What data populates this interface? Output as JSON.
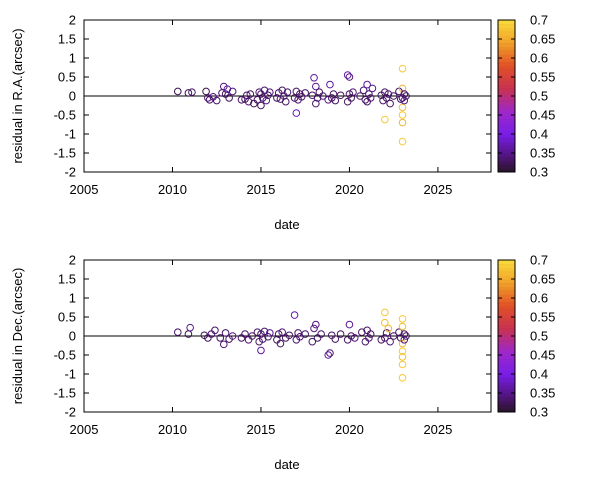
{
  "chart_data": [
    {
      "type": "scatter",
      "xlabel": "date",
      "ylabel": "residual in R.A.(arcsec)",
      "xlim": [
        2005,
        2028
      ],
      "ylim": [
        -2,
        2
      ],
      "xticks": [
        2005,
        2010,
        2015,
        2020,
        2025
      ],
      "yticks": [
        -2,
        -1.5,
        -1,
        -0.5,
        0,
        0.5,
        1,
        1.5,
        2
      ],
      "zero_line": true,
      "marker": "open-circle",
      "colorbar": {
        "palette": "purple-red-yellow",
        "range": [
          0.3,
          0.7
        ],
        "ticks": [
          "0.3",
          "0.35",
          "0.4",
          "0.45",
          "0.5",
          "0.55",
          "0.6",
          "0.65",
          "0.7"
        ],
        "placement": "right"
      },
      "points": [
        {
          "x": 2010.3,
          "y": 0.12,
          "c": 0.32
        },
        {
          "x": 2010.9,
          "y": 0.08,
          "c": 0.32
        },
        {
          "x": 2011.1,
          "y": 0.1,
          "c": 0.33
        },
        {
          "x": 2011.9,
          "y": 0.12,
          "c": 0.32
        },
        {
          "x": 2012.0,
          "y": -0.05,
          "c": 0.34
        },
        {
          "x": 2012.1,
          "y": -0.1,
          "c": 0.33
        },
        {
          "x": 2012.3,
          "y": -0.02,
          "c": 0.35
        },
        {
          "x": 2012.5,
          "y": -0.12,
          "c": 0.33
        },
        {
          "x": 2012.8,
          "y": 0.08,
          "c": 0.33
        },
        {
          "x": 2012.9,
          "y": 0.25,
          "c": 0.34
        },
        {
          "x": 2013.0,
          "y": 0.05,
          "c": 0.33
        },
        {
          "x": 2013.1,
          "y": 0.18,
          "c": 0.36
        },
        {
          "x": 2013.2,
          "y": -0.05,
          "c": 0.33
        },
        {
          "x": 2013.4,
          "y": 0.12,
          "c": 0.34
        },
        {
          "x": 2013.9,
          "y": -0.1,
          "c": 0.33
        },
        {
          "x": 2014.1,
          "y": -0.08,
          "c": 0.33
        },
        {
          "x": 2014.2,
          "y": 0.02,
          "c": 0.33
        },
        {
          "x": 2014.3,
          "y": -0.15,
          "c": 0.34
        },
        {
          "x": 2014.4,
          "y": 0.05,
          "c": 0.33
        },
        {
          "x": 2014.6,
          "y": -0.2,
          "c": 0.32
        },
        {
          "x": 2014.8,
          "y": -0.1,
          "c": 0.33
        },
        {
          "x": 2014.9,
          "y": 0.1,
          "c": 0.33
        },
        {
          "x": 2015.0,
          "y": -0.25,
          "c": 0.33
        },
        {
          "x": 2015.0,
          "y": 0.05,
          "c": 0.34
        },
        {
          "x": 2015.1,
          "y": -0.05,
          "c": 0.33
        },
        {
          "x": 2015.2,
          "y": 0.15,
          "c": 0.33
        },
        {
          "x": 2015.3,
          "y": -0.12,
          "c": 0.35
        },
        {
          "x": 2015.4,
          "y": 0.02,
          "c": 0.33
        },
        {
          "x": 2015.5,
          "y": 0.1,
          "c": 0.34
        },
        {
          "x": 2015.9,
          "y": -0.05,
          "c": 0.33
        },
        {
          "x": 2016.0,
          "y": 0.08,
          "c": 0.33
        },
        {
          "x": 2016.1,
          "y": -0.08,
          "c": 0.33
        },
        {
          "x": 2016.2,
          "y": 0.15,
          "c": 0.33
        },
        {
          "x": 2016.3,
          "y": 0.0,
          "c": 0.34
        },
        {
          "x": 2016.4,
          "y": -0.15,
          "c": 0.33
        },
        {
          "x": 2016.5,
          "y": 0.1,
          "c": 0.33
        },
        {
          "x": 2016.9,
          "y": -0.05,
          "c": 0.33
        },
        {
          "x": 2017.0,
          "y": -0.45,
          "c": 0.38
        },
        {
          "x": 2017.0,
          "y": 0.12,
          "c": 0.33
        },
        {
          "x": 2017.1,
          "y": -0.1,
          "c": 0.34
        },
        {
          "x": 2017.2,
          "y": 0.05,
          "c": 0.33
        },
        {
          "x": 2017.3,
          "y": -0.02,
          "c": 0.33
        },
        {
          "x": 2017.5,
          "y": 0.08,
          "c": 0.33
        },
        {
          "x": 2017.9,
          "y": 0.02,
          "c": 0.33
        },
        {
          "x": 2018.0,
          "y": 0.48,
          "c": 0.36
        },
        {
          "x": 2018.1,
          "y": 0.25,
          "c": 0.35
        },
        {
          "x": 2018.1,
          "y": -0.2,
          "c": 0.33
        },
        {
          "x": 2018.2,
          "y": -0.05,
          "c": 0.34
        },
        {
          "x": 2018.3,
          "y": 0.1,
          "c": 0.33
        },
        {
          "x": 2018.5,
          "y": 0.0,
          "c": 0.33
        },
        {
          "x": 2018.8,
          "y": -0.1,
          "c": 0.35
        },
        {
          "x": 2018.9,
          "y": 0.3,
          "c": 0.36
        },
        {
          "x": 2019.0,
          "y": -0.05,
          "c": 0.33
        },
        {
          "x": 2019.1,
          "y": 0.05,
          "c": 0.33
        },
        {
          "x": 2019.2,
          "y": -0.12,
          "c": 0.33
        },
        {
          "x": 2019.5,
          "y": 0.02,
          "c": 0.33
        },
        {
          "x": 2019.9,
          "y": 0.55,
          "c": 0.37
        },
        {
          "x": 2020.0,
          "y": 0.5,
          "c": 0.34
        },
        {
          "x": 2019.9,
          "y": -0.15,
          "c": 0.33
        },
        {
          "x": 2020.0,
          "y": 0.05,
          "c": 0.33
        },
        {
          "x": 2020.1,
          "y": -0.05,
          "c": 0.33
        },
        {
          "x": 2020.2,
          "y": 0.1,
          "c": 0.34
        },
        {
          "x": 2020.6,
          "y": 0.0,
          "c": 0.33
        },
        {
          "x": 2020.8,
          "y": 0.15,
          "c": 0.33
        },
        {
          "x": 2020.9,
          "y": -0.1,
          "c": 0.33
        },
        {
          "x": 2021.0,
          "y": 0.3,
          "c": 0.36
        },
        {
          "x": 2021.0,
          "y": -0.15,
          "c": 0.33
        },
        {
          "x": 2021.1,
          "y": 0.05,
          "c": 0.33
        },
        {
          "x": 2021.2,
          "y": -0.05,
          "c": 0.34
        },
        {
          "x": 2021.3,
          "y": 0.2,
          "c": 0.35
        },
        {
          "x": 2021.8,
          "y": 0.02,
          "c": 0.33
        },
        {
          "x": 2021.9,
          "y": -0.12,
          "c": 0.33
        },
        {
          "x": 2022.0,
          "y": 0.1,
          "c": 0.33
        },
        {
          "x": 2022.0,
          "y": -0.62,
          "c": 0.68
        },
        {
          "x": 2022.1,
          "y": -0.05,
          "c": 0.33
        },
        {
          "x": 2022.2,
          "y": 0.05,
          "c": 0.34
        },
        {
          "x": 2022.3,
          "y": -0.2,
          "c": 0.33
        },
        {
          "x": 2022.5,
          "y": 0.0,
          "c": 0.33
        },
        {
          "x": 2022.8,
          "y": 0.12,
          "c": 0.33
        },
        {
          "x": 2022.9,
          "y": -0.08,
          "c": 0.33
        },
        {
          "x": 2023.0,
          "y": 0.72,
          "c": 0.68
        },
        {
          "x": 2023.0,
          "y": 0.2,
          "c": 0.66
        },
        {
          "x": 2023.0,
          "y": -0.05,
          "c": 0.34
        },
        {
          "x": 2023.0,
          "y": -0.3,
          "c": 0.67
        },
        {
          "x": 2023.0,
          "y": -0.5,
          "c": 0.68
        },
        {
          "x": 2023.0,
          "y": -0.7,
          "c": 0.66
        },
        {
          "x": 2023.0,
          "y": -1.2,
          "c": 0.68
        },
        {
          "x": 2023.1,
          "y": 0.05,
          "c": 0.33
        },
        {
          "x": 2023.1,
          "y": -0.12,
          "c": 0.35
        },
        {
          "x": 2023.2,
          "y": 0.0,
          "c": 0.33
        }
      ]
    },
    {
      "type": "scatter",
      "xlabel": "date",
      "ylabel": "residual in Dec.(arcsec)",
      "xlim": [
        2005,
        2028
      ],
      "ylim": [
        -2,
        2
      ],
      "xticks": [
        2005,
        2010,
        2015,
        2020,
        2025
      ],
      "yticks": [
        -2,
        -1.5,
        -1,
        -0.5,
        0,
        0.5,
        1,
        1.5,
        2
      ],
      "zero_line": true,
      "marker": "open-circle",
      "colorbar": {
        "palette": "purple-red-yellow",
        "range": [
          0.3,
          0.7
        ],
        "ticks": [
          "0.3",
          "0.35",
          "0.4",
          "0.45",
          "0.5",
          "0.55",
          "0.6",
          "0.65",
          "0.7"
        ],
        "placement": "right"
      },
      "points": [
        {
          "x": 2010.3,
          "y": 0.1,
          "c": 0.33
        },
        {
          "x": 2010.9,
          "y": 0.05,
          "c": 0.32
        },
        {
          "x": 2011.0,
          "y": 0.22,
          "c": 0.35
        },
        {
          "x": 2011.8,
          "y": 0.02,
          "c": 0.32
        },
        {
          "x": 2012.0,
          "y": -0.05,
          "c": 0.33
        },
        {
          "x": 2012.2,
          "y": 0.05,
          "c": 0.34
        },
        {
          "x": 2012.4,
          "y": 0.15,
          "c": 0.33
        },
        {
          "x": 2012.7,
          "y": -0.05,
          "c": 0.33
        },
        {
          "x": 2012.9,
          "y": -0.22,
          "c": 0.34
        },
        {
          "x": 2013.0,
          "y": 0.08,
          "c": 0.33
        },
        {
          "x": 2013.2,
          "y": -0.08,
          "c": 0.33
        },
        {
          "x": 2013.4,
          "y": 0.0,
          "c": 0.34
        },
        {
          "x": 2013.9,
          "y": -0.05,
          "c": 0.33
        },
        {
          "x": 2014.1,
          "y": 0.05,
          "c": 0.33
        },
        {
          "x": 2014.3,
          "y": -0.1,
          "c": 0.34
        },
        {
          "x": 2014.5,
          "y": 0.0,
          "c": 0.33
        },
        {
          "x": 2014.8,
          "y": 0.1,
          "c": 0.33
        },
        {
          "x": 2014.9,
          "y": -0.15,
          "c": 0.33
        },
        {
          "x": 2015.0,
          "y": -0.38,
          "c": 0.36
        },
        {
          "x": 2015.0,
          "y": 0.05,
          "c": 0.33
        },
        {
          "x": 2015.1,
          "y": -0.08,
          "c": 0.34
        },
        {
          "x": 2015.2,
          "y": 0.12,
          "c": 0.33
        },
        {
          "x": 2015.4,
          "y": -0.02,
          "c": 0.33
        },
        {
          "x": 2015.5,
          "y": 0.08,
          "c": 0.35
        },
        {
          "x": 2015.9,
          "y": -0.1,
          "c": 0.33
        },
        {
          "x": 2016.0,
          "y": 0.05,
          "c": 0.33
        },
        {
          "x": 2016.1,
          "y": -0.2,
          "c": 0.33
        },
        {
          "x": 2016.2,
          "y": 0.1,
          "c": 0.34
        },
        {
          "x": 2016.4,
          "y": -0.05,
          "c": 0.33
        },
        {
          "x": 2016.6,
          "y": 0.02,
          "c": 0.33
        },
        {
          "x": 2016.9,
          "y": 0.55,
          "c": 0.37
        },
        {
          "x": 2017.0,
          "y": -0.1,
          "c": 0.33
        },
        {
          "x": 2017.1,
          "y": 0.08,
          "c": 0.33
        },
        {
          "x": 2017.2,
          "y": -0.02,
          "c": 0.34
        },
        {
          "x": 2017.5,
          "y": 0.05,
          "c": 0.33
        },
        {
          "x": 2017.9,
          "y": -0.15,
          "c": 0.33
        },
        {
          "x": 2018.0,
          "y": 0.2,
          "c": 0.35
        },
        {
          "x": 2018.1,
          "y": 0.3,
          "c": 0.34
        },
        {
          "x": 2018.2,
          "y": -0.05,
          "c": 0.33
        },
        {
          "x": 2018.4,
          "y": 0.05,
          "c": 0.33
        },
        {
          "x": 2018.8,
          "y": -0.5,
          "c": 0.36
        },
        {
          "x": 2018.9,
          "y": -0.45,
          "c": 0.34
        },
        {
          "x": 2019.0,
          "y": 0.02,
          "c": 0.33
        },
        {
          "x": 2019.2,
          "y": -0.08,
          "c": 0.33
        },
        {
          "x": 2019.5,
          "y": 0.05,
          "c": 0.33
        },
        {
          "x": 2019.9,
          "y": -0.1,
          "c": 0.33
        },
        {
          "x": 2020.0,
          "y": 0.3,
          "c": 0.35
        },
        {
          "x": 2020.1,
          "y": 0.0,
          "c": 0.33
        },
        {
          "x": 2020.3,
          "y": -0.05,
          "c": 0.34
        },
        {
          "x": 2020.7,
          "y": 0.1,
          "c": 0.33
        },
        {
          "x": 2020.9,
          "y": -0.15,
          "c": 0.33
        },
        {
          "x": 2021.0,
          "y": 0.15,
          "c": 0.33
        },
        {
          "x": 2021.1,
          "y": -0.05,
          "c": 0.34
        },
        {
          "x": 2021.2,
          "y": 0.05,
          "c": 0.33
        },
        {
          "x": 2021.8,
          "y": -0.1,
          "c": 0.33
        },
        {
          "x": 2022.0,
          "y": 0.62,
          "c": 0.68
        },
        {
          "x": 2022.0,
          "y": 0.35,
          "c": 0.67
        },
        {
          "x": 2022.0,
          "y": -0.05,
          "c": 0.33
        },
        {
          "x": 2022.1,
          "y": 0.08,
          "c": 0.33
        },
        {
          "x": 2022.2,
          "y": 0.2,
          "c": 0.66
        },
        {
          "x": 2022.3,
          "y": -0.15,
          "c": 0.34
        },
        {
          "x": 2022.5,
          "y": 0.0,
          "c": 0.33
        },
        {
          "x": 2022.8,
          "y": 0.1,
          "c": 0.33
        },
        {
          "x": 2022.9,
          "y": -0.05,
          "c": 0.33
        },
        {
          "x": 2023.0,
          "y": 0.45,
          "c": 0.68
        },
        {
          "x": 2023.0,
          "y": 0.25,
          "c": 0.67
        },
        {
          "x": 2023.0,
          "y": -0.2,
          "c": 0.66
        },
        {
          "x": 2023.0,
          "y": -0.4,
          "c": 0.68
        },
        {
          "x": 2023.0,
          "y": -0.55,
          "c": 0.67
        },
        {
          "x": 2023.0,
          "y": -0.75,
          "c": 0.68
        },
        {
          "x": 2023.0,
          "y": -1.1,
          "c": 0.68
        },
        {
          "x": 2023.1,
          "y": 0.05,
          "c": 0.33
        },
        {
          "x": 2023.1,
          "y": -0.1,
          "c": 0.34
        },
        {
          "x": 2023.2,
          "y": 0.0,
          "c": 0.33
        }
      ]
    }
  ]
}
